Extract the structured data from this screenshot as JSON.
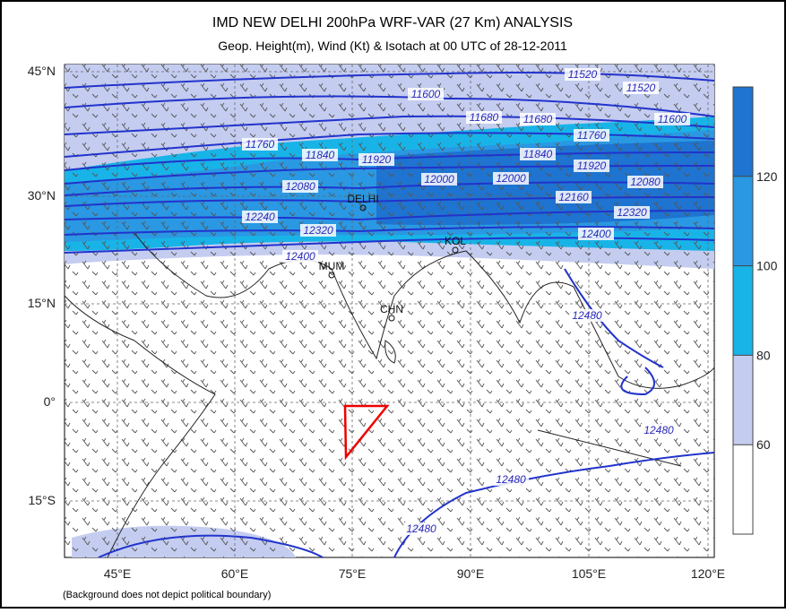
{
  "header": {
    "title": "IMD NEW DELHI 200hPa WRF-VAR (27 Km) ANALYSIS",
    "subtitle": "Geop. Height(m), Wind (Kt) & Isotach  at 00 UTC of 28-12-2011"
  },
  "axes": {
    "latitudes": [
      "45°N",
      "30°N",
      "15°N",
      "0°",
      "15°S"
    ],
    "longitudes": [
      "45°E",
      "60°E",
      "75°E",
      "90°E",
      "105°E",
      "120°E"
    ]
  },
  "colorbar": {
    "range": [
      40,
      140
    ],
    "ticks": [
      60,
      80,
      100,
      120
    ]
  },
  "contour_labels": [
    "11520",
    "11520",
    "11600",
    "11600",
    "11680",
    "11680",
    "11760",
    "11760",
    "11840",
    "11840",
    "11920",
    "11920",
    "12000",
    "12000",
    "12080",
    "12080",
    "12160",
    "12240",
    "12320",
    "12320",
    "12400",
    "12400",
    "12480",
    "12480",
    "12480",
    "12480"
  ],
  "cities": [
    "DELHI",
    "KOL",
    "MUM",
    "CHN"
  ],
  "footnote": "(Background does not depict political boundary)"
}
